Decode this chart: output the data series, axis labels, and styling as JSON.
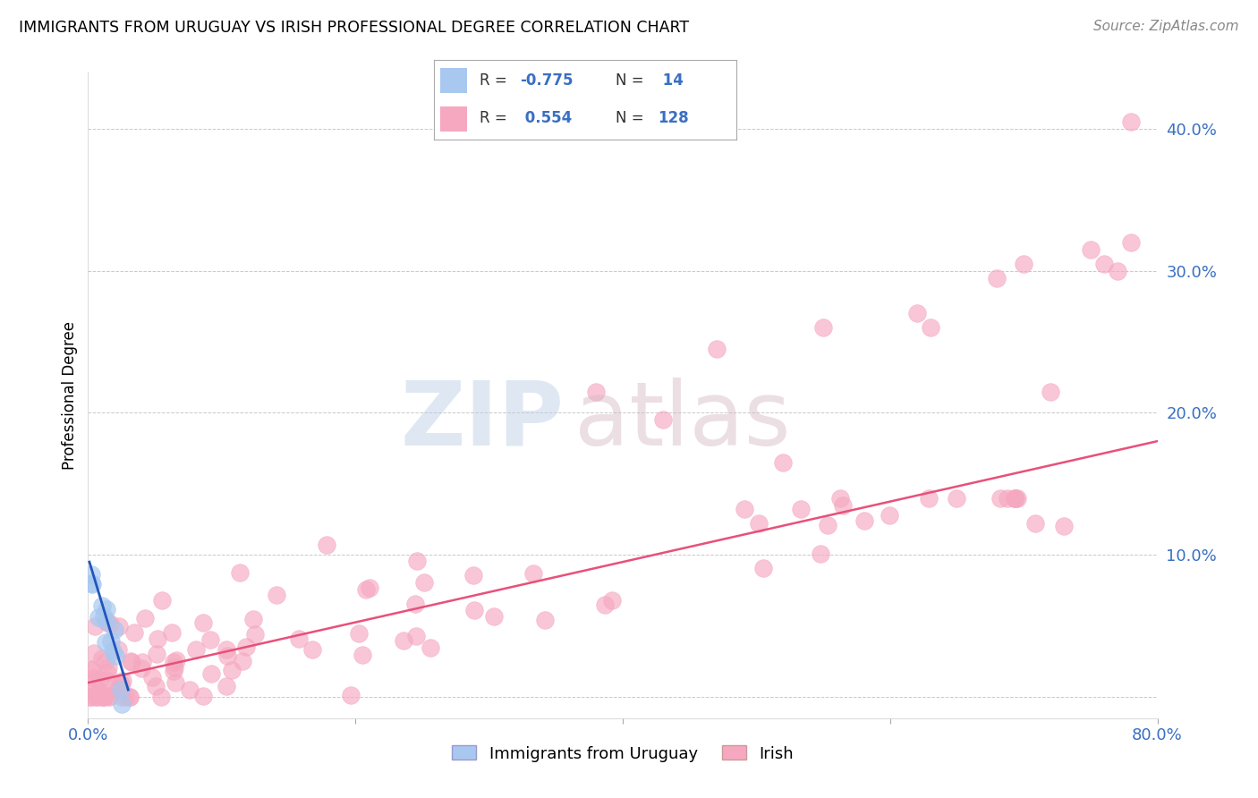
{
  "title": "IMMIGRANTS FROM URUGUAY VS IRISH PROFESSIONAL DEGREE CORRELATION CHART",
  "source": "Source: ZipAtlas.com",
  "ylabel": "Professional Degree",
  "xlim": [
    0.0,
    0.8
  ],
  "ylim": [
    -0.015,
    0.44
  ],
  "legend_blue_label": "Immigrants from Uruguay",
  "legend_pink_label": "Irish",
  "blue_color": "#A8C8F0",
  "blue_line_color": "#2255BB",
  "pink_color": "#F5A8C0",
  "pink_line_color": "#E8507A",
  "grid_color": "#BBBBBB",
  "background_color": "#FFFFFF",
  "pink_trend_x": [
    0.0,
    0.8
  ],
  "pink_trend_y": [
    0.01,
    0.18
  ],
  "blue_trend_x": [
    0.001,
    0.03
  ],
  "blue_trend_y": [
    0.095,
    0.005
  ]
}
